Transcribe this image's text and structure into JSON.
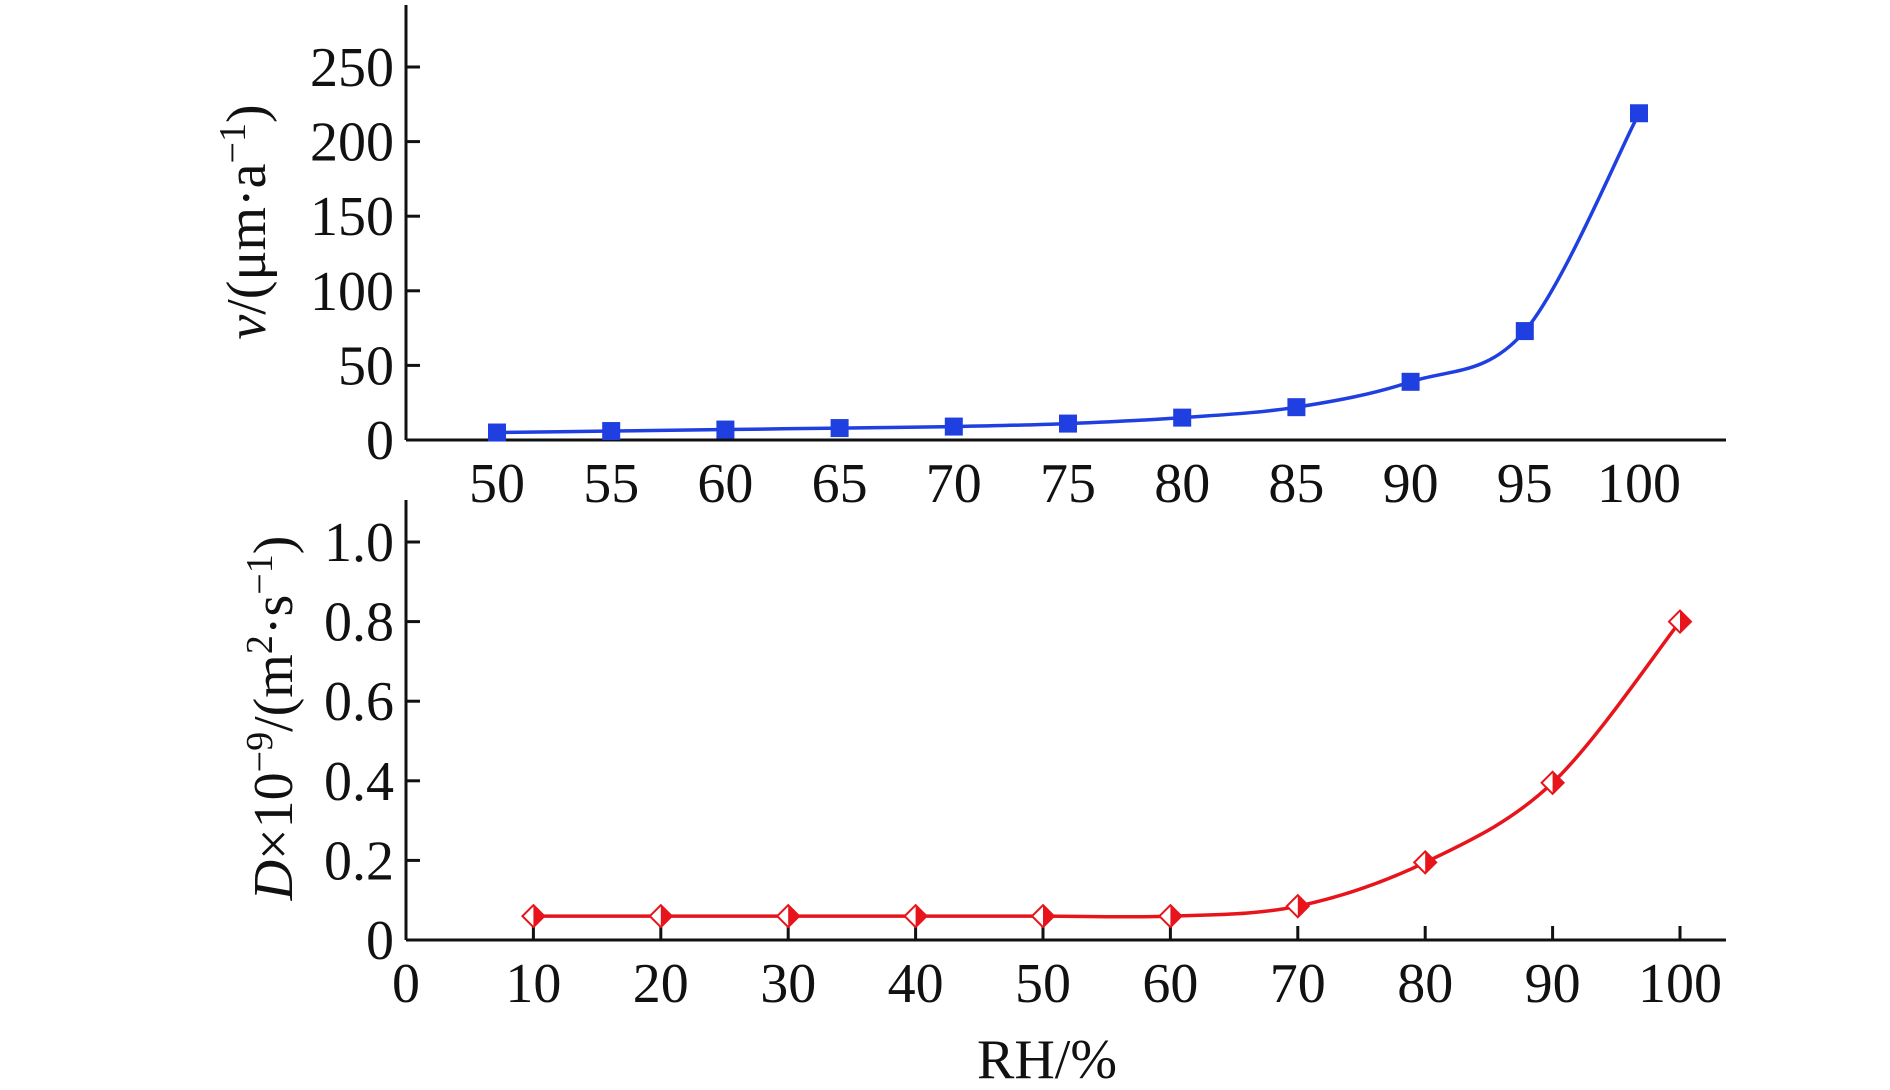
{
  "chart_data": [
    {
      "type": "line",
      "ylabel": {
        "italic": "v",
        "rest": "/(μm·a",
        "sup": "−1",
        "end": ")"
      },
      "categories": [
        "50",
        "55",
        "60",
        "65",
        "70",
        "75",
        "80",
        "85",
        "90",
        "95",
        "100"
      ],
      "ylim": [
        0,
        280
      ],
      "yticks": [
        "0",
        "50",
        "100",
        "150",
        "200",
        "250"
      ],
      "grid": false,
      "series": [
        {
          "values": [
            5,
            6,
            7,
            8,
            9,
            11,
            15,
            22,
            39,
            73,
            219
          ],
          "color": "#1f3fe0",
          "marker": "square"
        }
      ]
    },
    {
      "type": "line",
      "xlabel": "RH/%",
      "ylabel": {
        "italic": "D",
        "rest1": "×10",
        "sup1": "−9",
        "rest2": "/(m",
        "sup2": "2",
        "rest3": "·s",
        "sup3": "−1",
        "end": ")"
      },
      "xlim": [
        0,
        103
      ],
      "xticks": [
        "0",
        "10",
        "20",
        "30",
        "40",
        "50",
        "60",
        "70",
        "80",
        "90",
        "100"
      ],
      "ylim": [
        0,
        1.07
      ],
      "yticks": [
        "0",
        "0.2",
        "0.4",
        "0.6",
        "0.8",
        "1.0"
      ],
      "grid": false,
      "series": [
        {
          "x": [
            10,
            20,
            30,
            40,
            50,
            60,
            70,
            80,
            90,
            100
          ],
          "y": [
            0.06,
            0.06,
            0.06,
            0.06,
            0.06,
            0.06,
            0.085,
            0.195,
            0.395,
            0.8
          ],
          "color": "#e8141c",
          "marker": "half-filled-diamond"
        }
      ]
    }
  ]
}
